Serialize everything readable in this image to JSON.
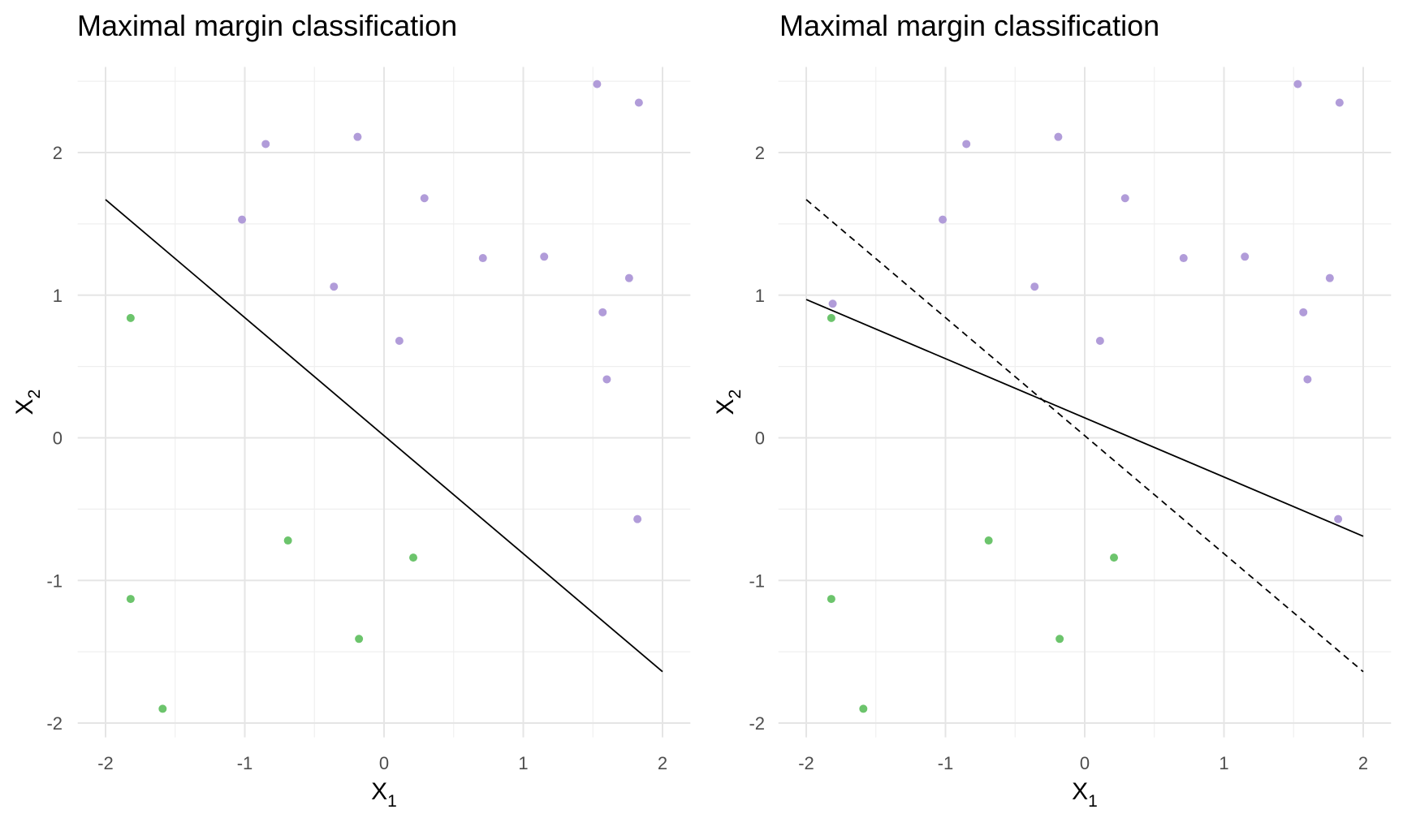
{
  "chart_data": [
    {
      "type": "scatter",
      "title": "Maximal margin classification",
      "xlabel": "X",
      "xlabel_sub": "1",
      "ylabel": "X",
      "ylabel_sub": "2",
      "xlim": [
        -2.2,
        2.2
      ],
      "ylim": [
        -2.1,
        2.6
      ],
      "x_ticks": [
        -2,
        -1,
        0,
        1,
        2
      ],
      "y_ticks": [
        -2,
        -1,
        0,
        1,
        2
      ],
      "x_tick_labels": [
        "-2",
        "-1",
        "0",
        "1",
        "2"
      ],
      "y_tick_labels": [
        "-2",
        "-1",
        "0",
        "1",
        "2"
      ],
      "grid": true,
      "colors": {
        "class_a": "#b19cd9",
        "class_b": "#6cc46c"
      },
      "series": [
        {
          "class": "a",
          "points": [
            [
              1.53,
              2.48
            ],
            [
              1.83,
              2.35
            ],
            [
              -0.85,
              2.06
            ],
            [
              -0.19,
              2.11
            ],
            [
              0.29,
              1.68
            ],
            [
              -1.02,
              1.53
            ],
            [
              0.71,
              1.26
            ],
            [
              1.15,
              1.27
            ],
            [
              1.76,
              1.12
            ],
            [
              -0.36,
              1.06
            ],
            [
              1.57,
              0.88
            ],
            [
              0.11,
              0.68
            ],
            [
              1.6,
              0.41
            ],
            [
              1.82,
              -0.57
            ]
          ]
        },
        {
          "class": "b",
          "points": [
            [
              -1.82,
              0.84
            ],
            [
              -0.69,
              -0.72
            ],
            [
              0.21,
              -0.84
            ],
            [
              -1.82,
              -1.13
            ],
            [
              -0.18,
              -1.41
            ],
            [
              -1.59,
              -1.9
            ]
          ]
        }
      ],
      "lines": [
        {
          "style": "solid",
          "x": [
            -2,
            2
          ],
          "y": [
            1.67,
            -1.64
          ]
        }
      ]
    },
    {
      "type": "scatter",
      "title": "Maximal margin classification",
      "xlabel": "X",
      "xlabel_sub": "1",
      "ylabel": "X",
      "ylabel_sub": "2",
      "xlim": [
        -2.2,
        2.2
      ],
      "ylim": [
        -2.1,
        2.6
      ],
      "x_ticks": [
        -2,
        -1,
        0,
        1,
        2
      ],
      "y_ticks": [
        -2,
        -1,
        0,
        1,
        2
      ],
      "x_tick_labels": [
        "-2",
        "-1",
        "0",
        "1",
        "2"
      ],
      "y_tick_labels": [
        "-2",
        "-1",
        "0",
        "1",
        "2"
      ],
      "grid": true,
      "colors": {
        "class_a": "#b19cd9",
        "class_b": "#6cc46c"
      },
      "series": [
        {
          "class": "a",
          "points": [
            [
              1.53,
              2.48
            ],
            [
              1.83,
              2.35
            ],
            [
              -0.85,
              2.06
            ],
            [
              -0.19,
              2.11
            ],
            [
              0.29,
              1.68
            ],
            [
              -1.02,
              1.53
            ],
            [
              0.71,
              1.26
            ],
            [
              1.15,
              1.27
            ],
            [
              1.76,
              1.12
            ],
            [
              -0.36,
              1.06
            ],
            [
              1.57,
              0.88
            ],
            [
              0.11,
              0.68
            ],
            [
              1.6,
              0.41
            ],
            [
              1.82,
              -0.57
            ],
            [
              -1.81,
              0.94
            ]
          ]
        },
        {
          "class": "b",
          "points": [
            [
              -1.82,
              0.84
            ],
            [
              -0.69,
              -0.72
            ],
            [
              0.21,
              -0.84
            ],
            [
              -1.82,
              -1.13
            ],
            [
              -0.18,
              -1.41
            ],
            [
              -1.59,
              -1.9
            ]
          ]
        }
      ],
      "lines": [
        {
          "style": "dashed",
          "x": [
            -2,
            2
          ],
          "y": [
            1.67,
            -1.64
          ]
        },
        {
          "style": "solid",
          "x": [
            -2,
            2
          ],
          "y": [
            0.97,
            -0.69
          ]
        }
      ]
    }
  ]
}
